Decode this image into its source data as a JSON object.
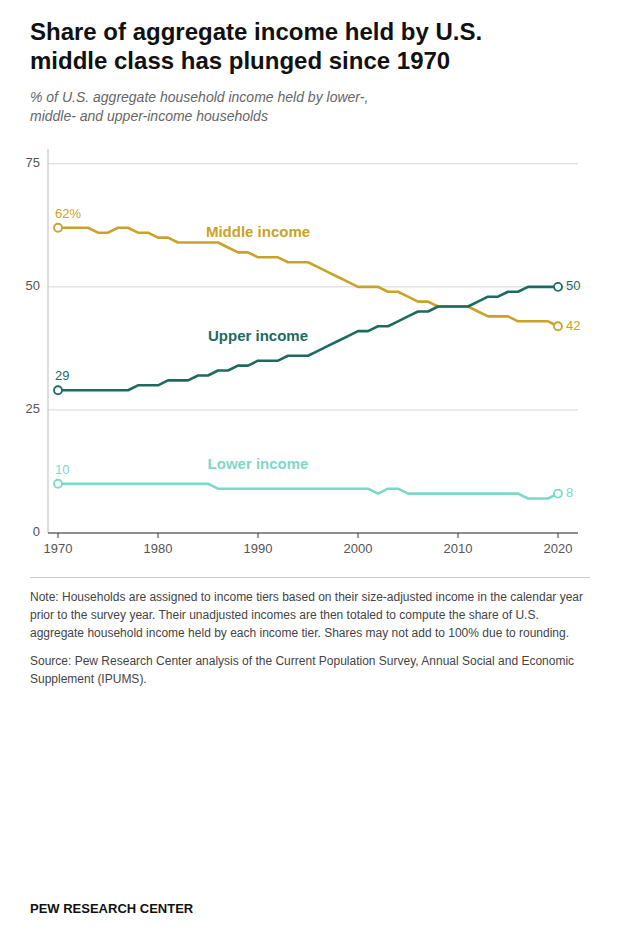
{
  "chart_data": {
    "type": "line",
    "title": "Share of aggregate income held by U.S.\nmiddle class has plunged since 1970",
    "subtitle": "% of U.S. aggregate household income held by lower-,\nmiddle- and upper-income households",
    "notes": [
      "Note: Households are assigned to income tiers based on their size-adjusted income in the calendar year prior to the survey year. Their unadjusted incomes are then totaled to compute the share of U.S. aggregate household income held by each income tier. Shares may not add to 100% due to rounding.",
      "Source: Pew Research Center analysis of the Current Population Survey, Annual Social and Economic Supplement (IPUMS)."
    ],
    "source": "PEW RESEARCH CENTER",
    "x": [
      1970,
      1971,
      1972,
      1973,
      1974,
      1975,
      1976,
      1977,
      1978,
      1979,
      1980,
      1981,
      1982,
      1983,
      1984,
      1985,
      1986,
      1987,
      1988,
      1989,
      1990,
      1991,
      1992,
      1993,
      1994,
      1995,
      1996,
      1997,
      1998,
      1999,
      2000,
      2001,
      2002,
      2003,
      2004,
      2005,
      2006,
      2007,
      2008,
      2009,
      2010,
      2011,
      2012,
      2013,
      2014,
      2015,
      2016,
      2017,
      2018,
      2019,
      2020
    ],
    "series": [
      {
        "name": "Middle income",
        "color": "#C9A227",
        "marker": "circle",
        "values": [
          62,
          62,
          62,
          62,
          61,
          61,
          62,
          62,
          61,
          61,
          60,
          60,
          59,
          59,
          59,
          59,
          59,
          58,
          57,
          57,
          56,
          56,
          56,
          55,
          55,
          55,
          54,
          53,
          52,
          51,
          50,
          50,
          50,
          49,
          49,
          48,
          47,
          47,
          46,
          46,
          46,
          46,
          45,
          44,
          44,
          44,
          43,
          43,
          43,
          43,
          42
        ],
        "value_labels": [
          "62%",
          null,
          null,
          null,
          null,
          null,
          null,
          null,
          null,
          null,
          null,
          null,
          null,
          null,
          null,
          null,
          null,
          null,
          null,
          null,
          null,
          null,
          null,
          null,
          null,
          null,
          null,
          null,
          null,
          null,
          null,
          null,
          null,
          null,
          null,
          null,
          null,
          null,
          null,
          null,
          null,
          null,
          null,
          null,
          null,
          null,
          null,
          null,
          null,
          null,
          "42"
        ]
      },
      {
        "name": "Upper income",
        "color": "#1D6B5E",
        "marker": "circle",
        "values": [
          29,
          29,
          29,
          29,
          29,
          29,
          29,
          29,
          30,
          30,
          30,
          31,
          31,
          31,
          32,
          32,
          33,
          33,
          34,
          34,
          35,
          35,
          35,
          36,
          36,
          36,
          37,
          38,
          39,
          40,
          41,
          41,
          42,
          42,
          43,
          44,
          45,
          45,
          46,
          46,
          46,
          46,
          47,
          48,
          48,
          49,
          49,
          50,
          50,
          50,
          50
        ],
        "value_labels": [
          "29",
          null,
          null,
          null,
          null,
          null,
          null,
          null,
          null,
          null,
          null,
          null,
          null,
          null,
          null,
          null,
          null,
          null,
          null,
          null,
          null,
          null,
          null,
          null,
          null,
          null,
          null,
          null,
          null,
          null,
          null,
          null,
          null,
          null,
          null,
          null,
          null,
          null,
          null,
          null,
          null,
          null,
          null,
          null,
          null,
          null,
          null,
          null,
          null,
          null,
          "50"
        ]
      },
      {
        "name": "Lower income",
        "color": "#7ED8C8",
        "marker": "circle",
        "values": [
          10,
          10,
          10,
          10,
          10,
          10,
          10,
          10,
          10,
          10,
          10,
          10,
          10,
          10,
          10,
          10,
          9,
          9,
          9,
          9,
          9,
          9,
          9,
          9,
          9,
          9,
          9,
          9,
          9,
          9,
          9,
          9,
          8,
          9,
          9,
          8,
          8,
          8,
          8,
          8,
          8,
          8,
          8,
          8,
          8,
          8,
          8,
          7,
          7,
          7,
          8
        ],
        "value_labels": [
          "10",
          null,
          null,
          null,
          null,
          null,
          null,
          null,
          null,
          null,
          null,
          null,
          null,
          null,
          null,
          null,
          null,
          null,
          null,
          null,
          null,
          null,
          null,
          null,
          null,
          null,
          null,
          null,
          null,
          null,
          null,
          null,
          null,
          null,
          null,
          null,
          null,
          null,
          null,
          null,
          null,
          null,
          null,
          null,
          null,
          null,
          null,
          null,
          null,
          null,
          "8"
        ]
      }
    ],
    "xlim": [
      1969.0,
      2022.0
    ],
    "xticks": [
      1970,
      1980,
      1990,
      2000,
      2010,
      2020
    ],
    "ylim": [
      0,
      78
    ],
    "yticks": [
      0,
      25,
      50,
      75
    ],
    "grid": true,
    "data_labels": true
  }
}
